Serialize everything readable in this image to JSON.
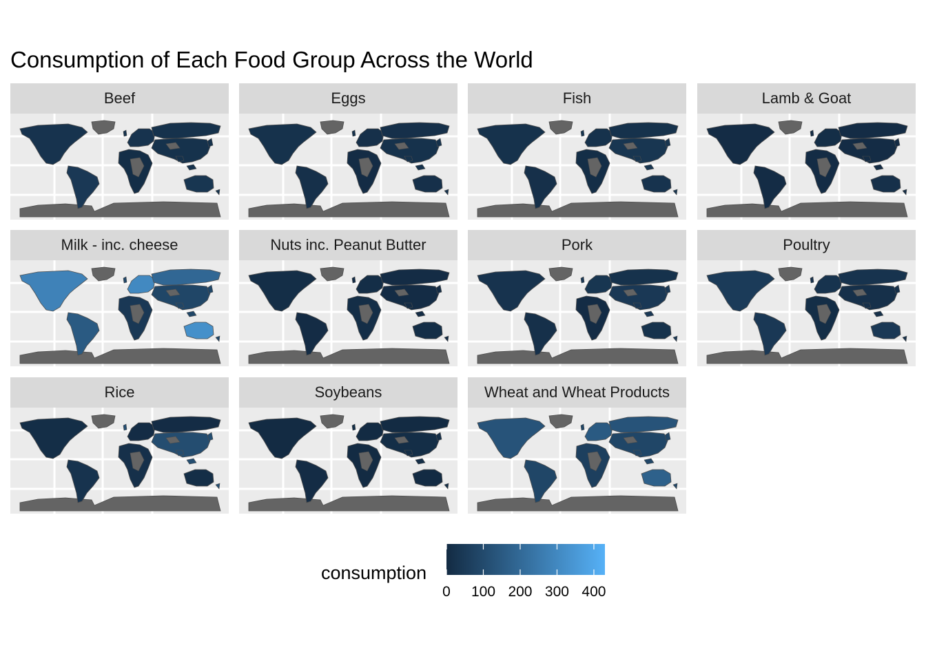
{
  "title": "Consumption of Each Food Group Across the World",
  "legend": {
    "title": "consumption",
    "range": [
      0,
      430
    ],
    "ticks": [
      "0",
      "100",
      "200",
      "300",
      "400"
    ],
    "low_color": "#132B43",
    "high_color": "#56B1F7"
  },
  "colors": {
    "panel_background": "#ebebeb",
    "strip_background": "#d9d9d9",
    "gridline": "#ffffff",
    "missing_data": "#646464",
    "country_border": "#4d4d4d"
  },
  "panels": [
    {
      "label": "Beef",
      "shades": {
        "na": 0.06,
        "sa": 0.1,
        "eu": 0.06,
        "ru": 0.05,
        "af": 0.02,
        "as": 0.05,
        "au": 0.08
      }
    },
    {
      "label": "Eggs",
      "shades": {
        "na": 0.05,
        "sa": 0.04,
        "eu": 0.04,
        "ru": 0.04,
        "af": 0.01,
        "as": 0.05,
        "au": 0.04
      }
    },
    {
      "label": "Fish",
      "shades": {
        "na": 0.05,
        "sa": 0.04,
        "eu": 0.05,
        "ru": 0.05,
        "af": 0.02,
        "as": 0.08,
        "au": 0.06
      }
    },
    {
      "label": "Lamb & Goat",
      "shades": {
        "na": 0.01,
        "sa": 0.01,
        "eu": 0.02,
        "ru": 0.01,
        "af": 0.01,
        "as": 0.01,
        "au": 0.04
      }
    },
    {
      "label": "Milk - inc. cheese",
      "shades": {
        "na": 0.65,
        "sa": 0.35,
        "eu": 0.7,
        "ru": 0.45,
        "af": 0.1,
        "as": 0.2,
        "au": 0.75
      }
    },
    {
      "label": "Nuts inc. Peanut Butter",
      "shades": {
        "na": 0.02,
        "sa": 0.01,
        "eu": 0.02,
        "ru": 0.01,
        "af": 0.02,
        "as": 0.01,
        "au": 0.02
      }
    },
    {
      "label": "Pork",
      "shades": {
        "na": 0.06,
        "sa": 0.04,
        "eu": 0.08,
        "ru": 0.05,
        "af": 0.01,
        "as": 0.1,
        "au": 0.05
      }
    },
    {
      "label": "Poultry",
      "shades": {
        "na": 0.12,
        "sa": 0.1,
        "eu": 0.06,
        "ru": 0.06,
        "af": 0.02,
        "as": 0.04,
        "au": 0.1
      }
    },
    {
      "label": "Rice",
      "shades": {
        "na": 0.02,
        "sa": 0.06,
        "eu": 0.01,
        "ru": 0.01,
        "af": 0.04,
        "as": 0.25,
        "au": 0.02
      }
    },
    {
      "label": "Soybeans",
      "shades": {
        "na": 0.0,
        "sa": 0.01,
        "eu": 0.0,
        "ru": 0.0,
        "af": 0.0,
        "as": 0.02,
        "au": 0.0
      }
    },
    {
      "label": "Wheat and Wheat Products",
      "shades": {
        "na": 0.3,
        "sa": 0.2,
        "eu": 0.35,
        "ru": 0.3,
        "af": 0.15,
        "as": 0.2,
        "au": 0.4
      }
    }
  ]
}
